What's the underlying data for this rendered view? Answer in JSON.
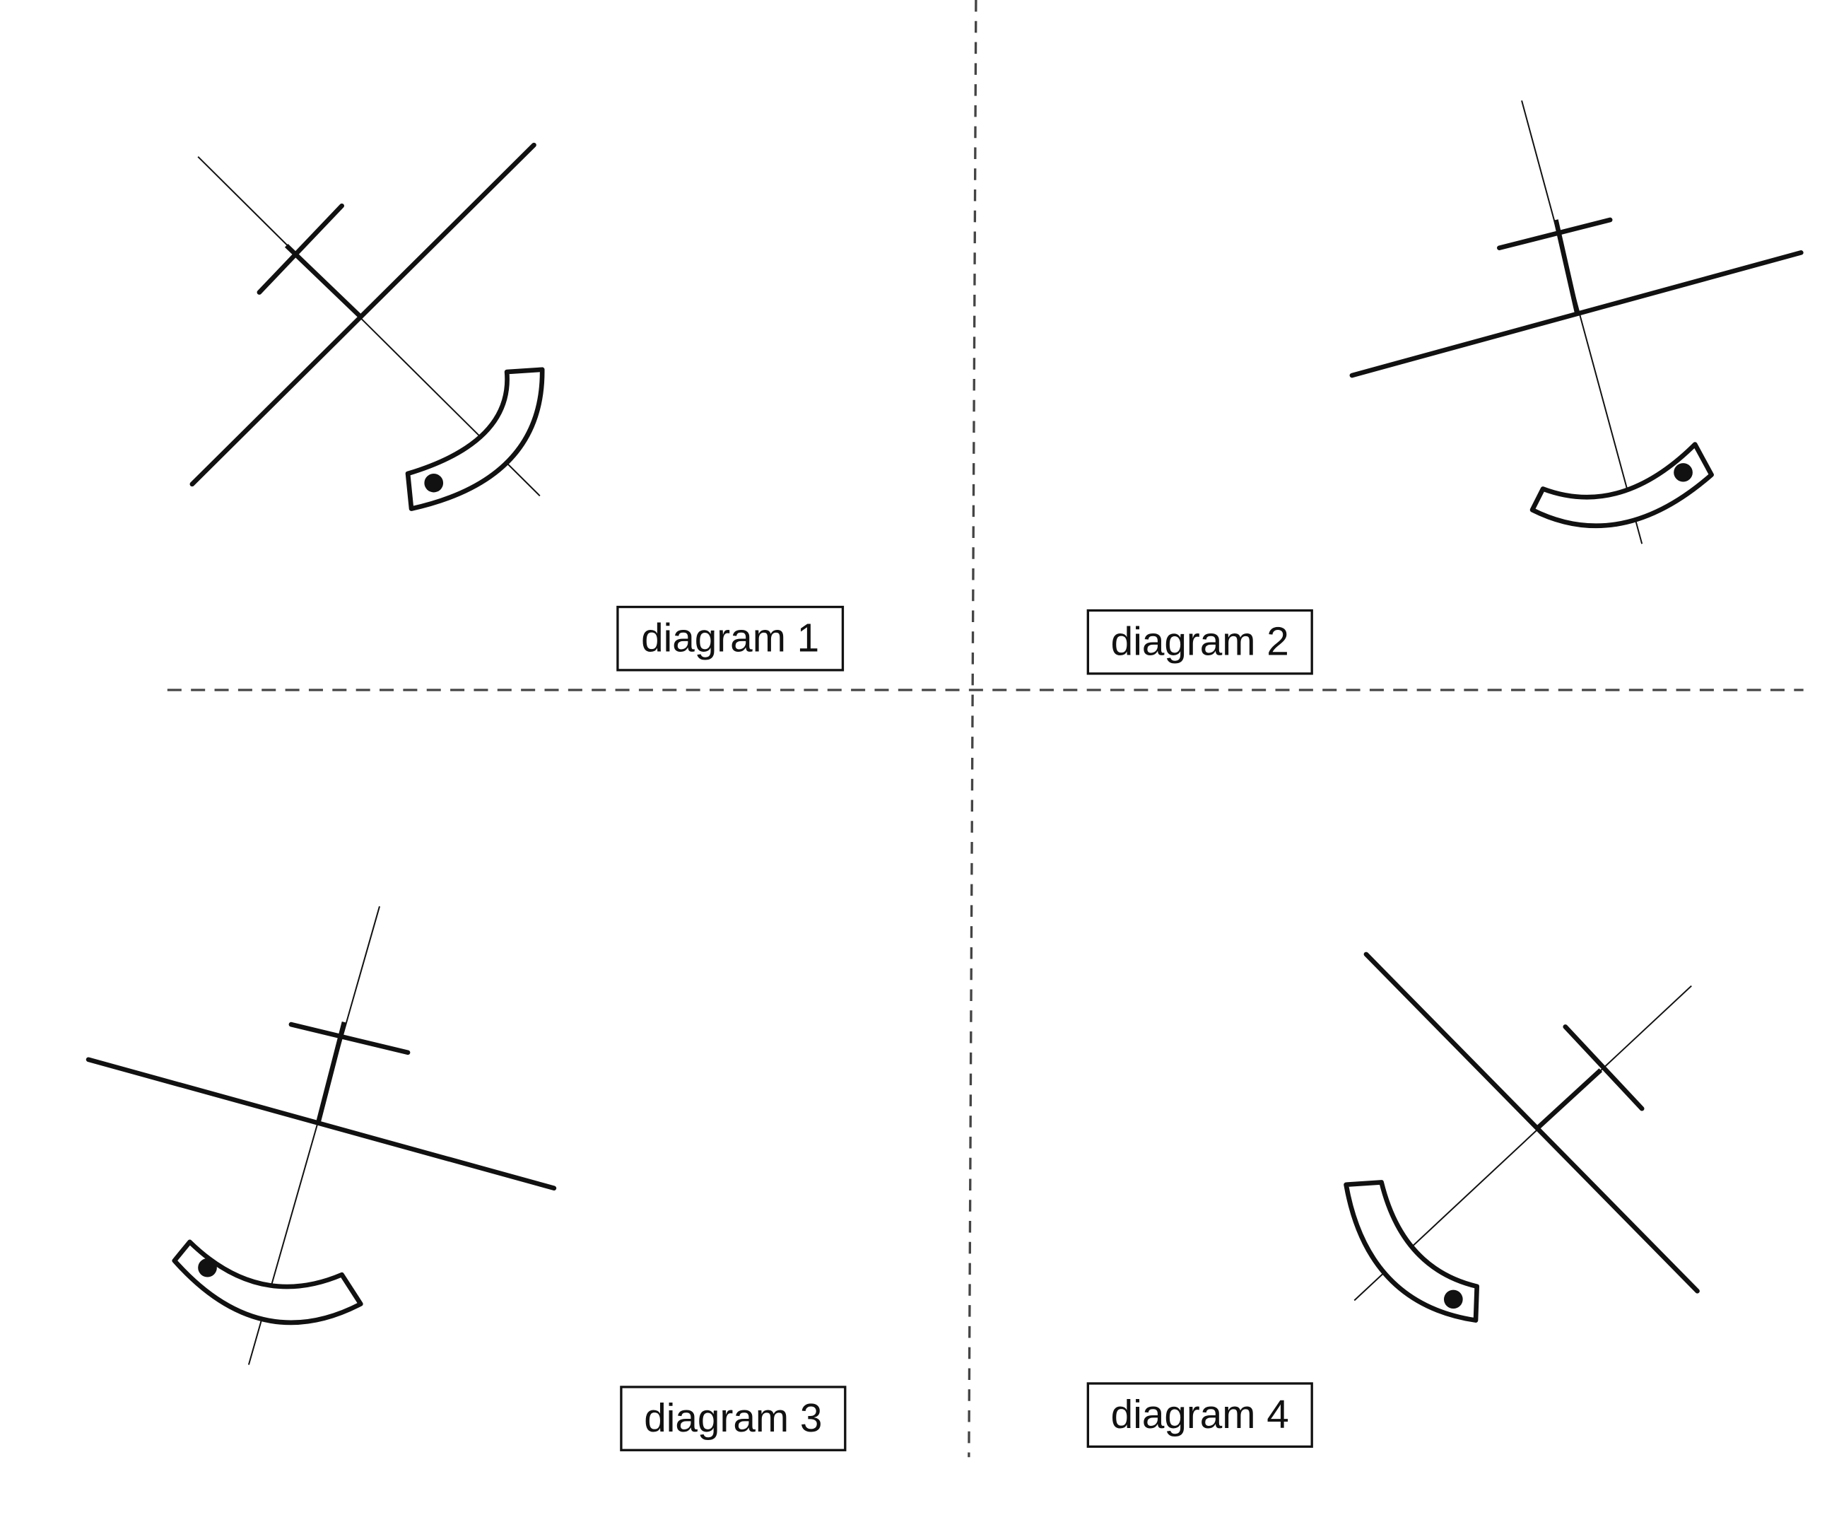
{
  "labels": {
    "diagram1": "diagram 1",
    "diagram2": "diagram 2",
    "diagram3": "diagram 3",
    "diagram4": "diagram 4"
  },
  "colors": {
    "ink": "#111111",
    "divider": "#444444",
    "background": "#ffffff"
  }
}
